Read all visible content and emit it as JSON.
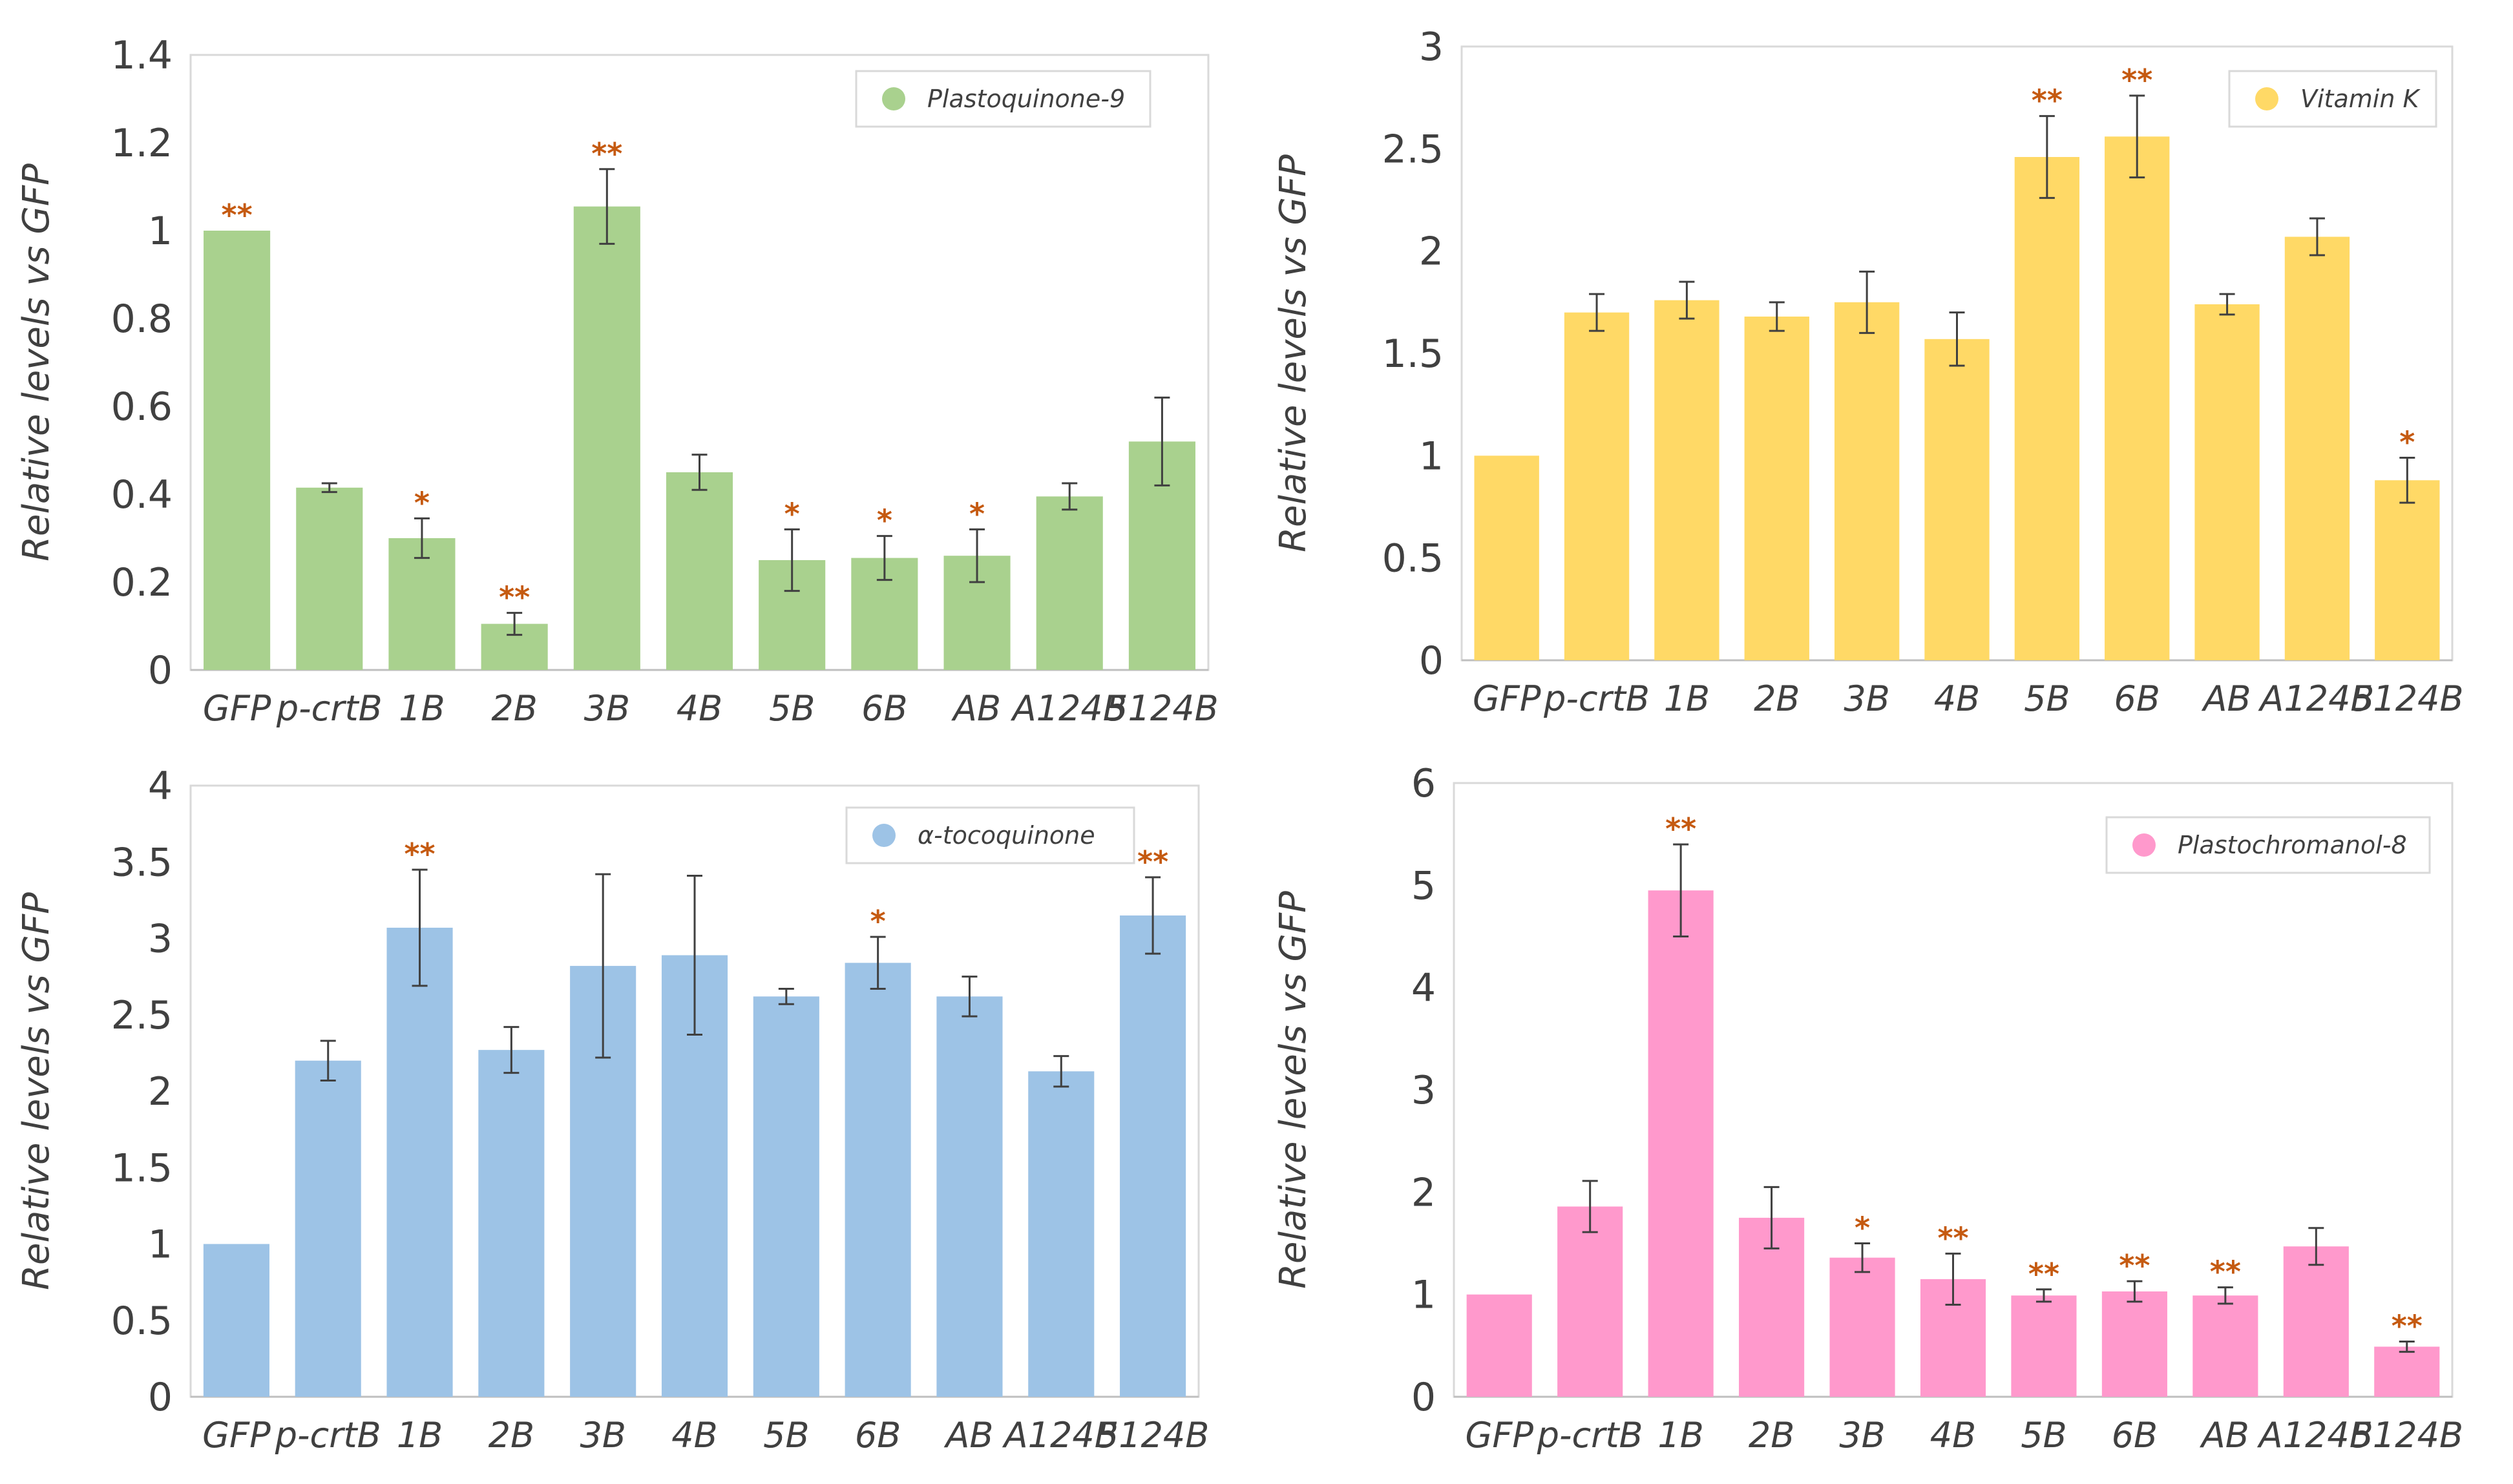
{
  "chart_data": [
    {
      "type": "bar",
      "id": "plastoquinone",
      "legend": "Plastoquinone-9",
      "color": "#a9d18e",
      "ylabel": "Relative levels vs GFP",
      "ylim": [
        0,
        1.4
      ],
      "yticks": [
        "0",
        "0.2",
        "0.4",
        "0.6",
        "0.8",
        "1",
        "1.2",
        "1.4"
      ],
      "categories": [
        "GFP",
        "p-crtB",
        "1B",
        "2B",
        "3B",
        "4B",
        "5B",
        "6B",
        "AB",
        "A124B",
        "5124B"
      ],
      "values": [
        1.0,
        0.415,
        0.3,
        0.105,
        1.055,
        0.45,
        0.25,
        0.255,
        0.26,
        0.395,
        0.52
      ],
      "errors": [
        0.0,
        0.01,
        0.045,
        0.025,
        0.085,
        0.04,
        0.07,
        0.05,
        0.06,
        0.03,
        0.1
      ],
      "significance": [
        "**",
        "",
        "*",
        "**",
        "**",
        "",
        "*",
        "*",
        "*",
        "",
        ""
      ]
    },
    {
      "type": "bar",
      "id": "vitamin-k",
      "legend": "Vitamin K",
      "color": "#ffd966",
      "ylabel": "Relative levels vs GFP",
      "ylim": [
        0,
        3
      ],
      "yticks": [
        "0",
        "0.5",
        "1",
        "1.5",
        "2",
        "2.5",
        "3"
      ],
      "categories": [
        "GFP",
        "p-crtB",
        "1B",
        "2B",
        "3B",
        "4B",
        "5B",
        "6B",
        "AB",
        "A124B",
        "5124B"
      ],
      "values": [
        1.0,
        1.7,
        1.76,
        1.68,
        1.75,
        1.57,
        2.46,
        2.56,
        1.74,
        2.07,
        0.88
      ],
      "errors": [
        0.0,
        0.09,
        0.09,
        0.07,
        0.15,
        0.13,
        0.2,
        0.2,
        0.05,
        0.09,
        0.11
      ],
      "significance": [
        "",
        "",
        "",
        "",
        "",
        "",
        "**",
        "**",
        "",
        "",
        "*"
      ]
    },
    {
      "type": "bar",
      "id": "tocoquinone",
      "legend": "α-tocoquinone",
      "color": "#9dc3e6",
      "ylabel": "Relative levels vs GFP",
      "ylim": [
        0,
        4
      ],
      "yticks": [
        "0",
        "0.5",
        "1",
        "1.5",
        "2",
        "2.5",
        "3",
        "3.5",
        "4"
      ],
      "categories": [
        "GFP",
        "p-crtB",
        "1B",
        "2B",
        "3B",
        "4B",
        "5B",
        "6B",
        "AB",
        "A124B",
        "5124B"
      ],
      "values": [
        1.0,
        2.2,
        3.07,
        2.27,
        2.82,
        2.89,
        2.62,
        2.84,
        2.62,
        2.13,
        3.15
      ],
      "errors": [
        0.0,
        0.13,
        0.38,
        0.15,
        0.6,
        0.52,
        0.05,
        0.17,
        0.13,
        0.1,
        0.25
      ],
      "significance": [
        "",
        "",
        "**",
        "",
        "",
        "",
        "",
        "*",
        "",
        "",
        "**"
      ]
    },
    {
      "type": "bar",
      "id": "plastochromanol",
      "legend": "Plastochromanol-8",
      "color": "#ff99cc",
      "ylabel": "Relative levels vs GFP",
      "ylim": [
        0,
        6
      ],
      "yticks": [
        "0",
        "1",
        "2",
        "3",
        "4",
        "5",
        "6"
      ],
      "categories": [
        "GFP",
        "p-crtB",
        "1B",
        "2B",
        "3B",
        "4B",
        "5B",
        "6B",
        "AB",
        "A124B",
        "5124B"
      ],
      "values": [
        1.0,
        1.86,
        4.95,
        1.75,
        1.36,
        1.15,
        0.99,
        1.03,
        0.99,
        1.47,
        0.49
      ],
      "errors": [
        0.0,
        0.25,
        0.45,
        0.3,
        0.14,
        0.25,
        0.06,
        0.1,
        0.08,
        0.18,
        0.05
      ],
      "significance": [
        "",
        "",
        "**",
        "",
        "*",
        "**",
        "**",
        "**",
        "**",
        "",
        "**"
      ]
    }
  ]
}
